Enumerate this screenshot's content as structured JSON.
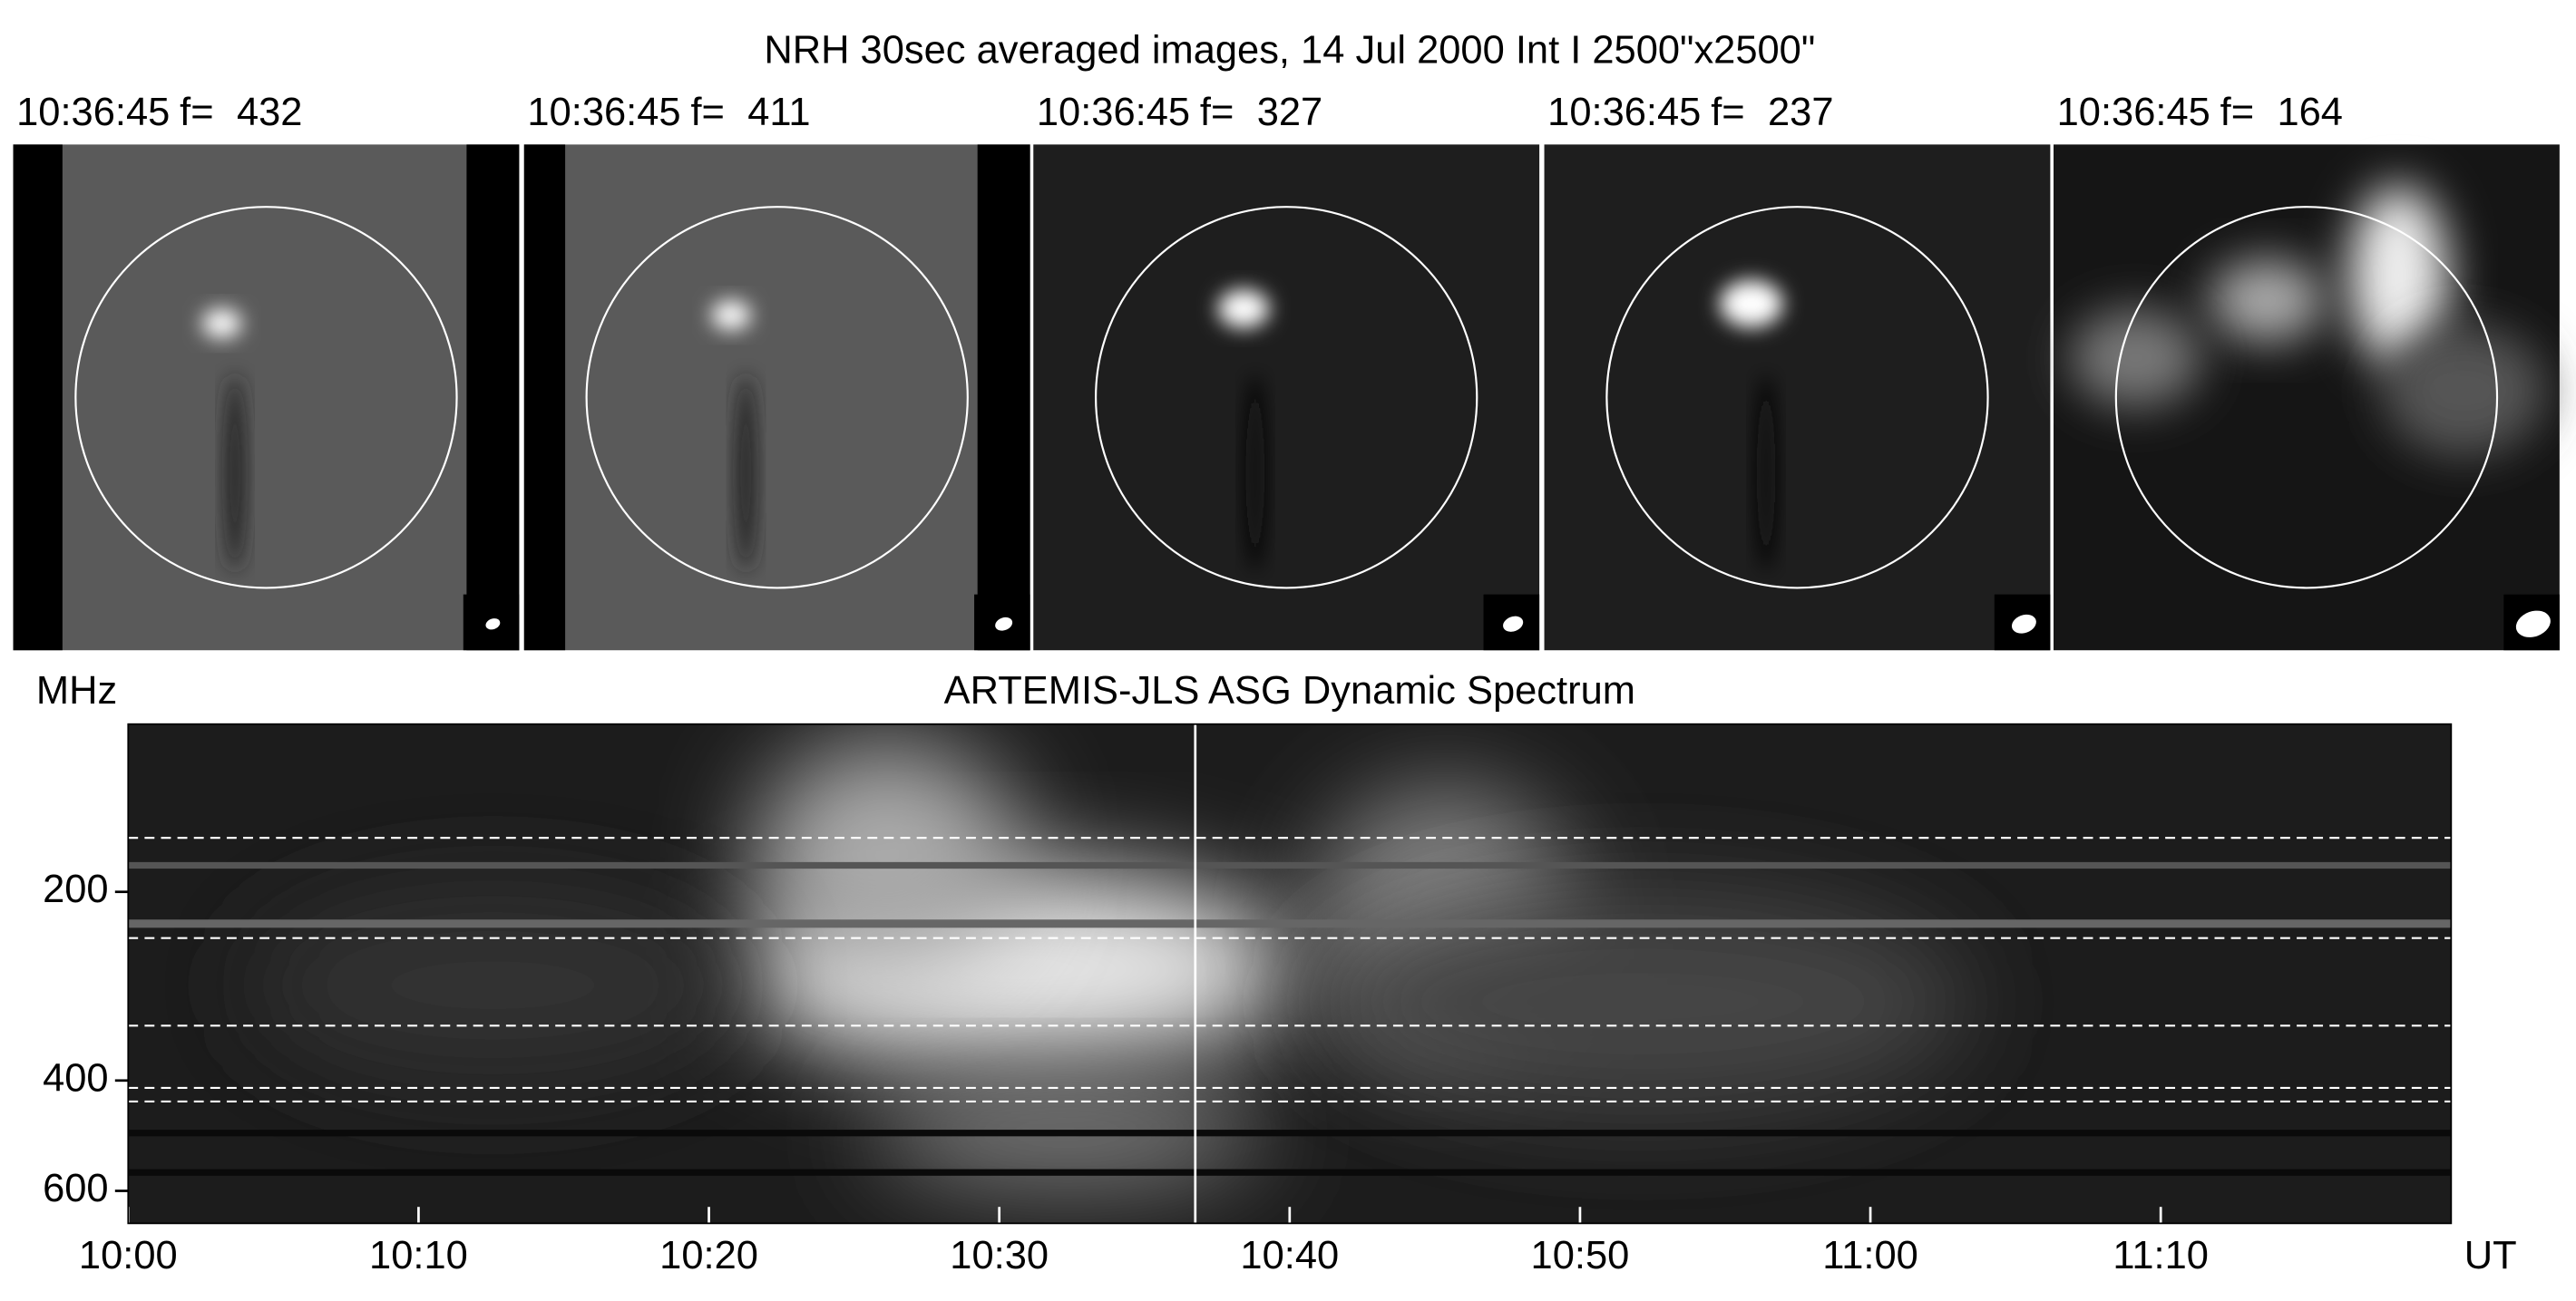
{
  "chart_data": {
    "type": "spectrogram",
    "title": "NRH 30sec averaged images, 14 Jul 2000 Int I 2500\"x2500\"",
    "images": [
      {
        "time": "10:36:45",
        "freq_label": "f=",
        "frequency": 432
      },
      {
        "time": "10:36:45",
        "freq_label": "f=",
        "frequency": 411
      },
      {
        "time": "10:36:45",
        "freq_label": "f=",
        "frequency": 327
      },
      {
        "time": "10:36:45",
        "freq_label": "f=",
        "frequency": 237
      },
      {
        "time": "10:36:45",
        "freq_label": "f=",
        "frequency": 164
      }
    ],
    "spectrum_title": "ARTEMIS-JLS ASG Dynamic Spectrum",
    "y_label": "MHz",
    "x_label": "UT",
    "yscale": "log",
    "yreversed": true,
    "ylim": [
      108,
      676
    ],
    "yticks": [
      200,
      400,
      600
    ],
    "xlim": [
      "10:00",
      "11:20"
    ],
    "xticks": [
      "10:00",
      "10:10",
      "10:20",
      "10:30",
      "10:40",
      "10:50",
      "11:00",
      "11:10"
    ]
  }
}
